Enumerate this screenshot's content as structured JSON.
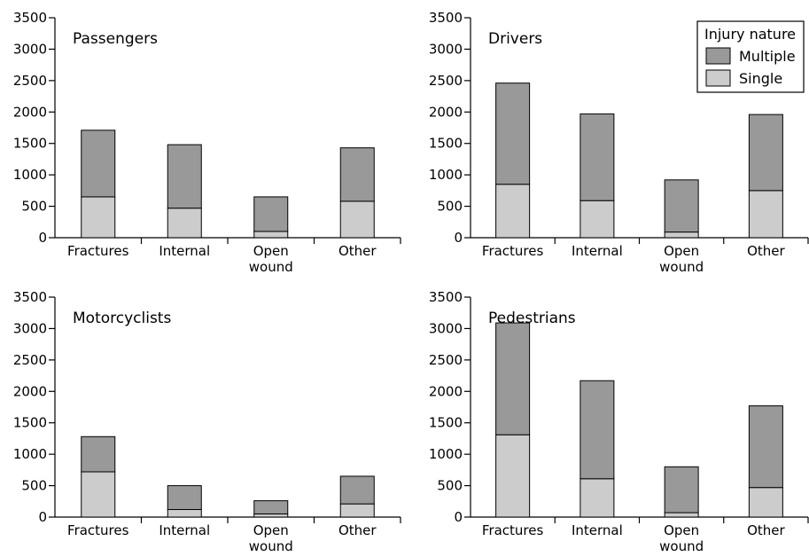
{
  "chart_data": {
    "type": "bar",
    "stacked": true,
    "categories": [
      [
        "Fractures"
      ],
      [
        "Internal"
      ],
      [
        "Open",
        "wound"
      ],
      [
        "Other"
      ]
    ],
    "ylim": [
      0,
      3500
    ],
    "yticks": [
      0,
      500,
      1000,
      1500,
      2000,
      2500,
      3000,
      3500
    ],
    "colors": {
      "Single": "#cccccc",
      "Multiple": "#999999"
    },
    "legend": {
      "title": "Injury nature",
      "entries": [
        "Multiple",
        "Single"
      ],
      "placement": "top-right"
    },
    "panels": [
      {
        "title": "Passengers",
        "series": [
          {
            "name": "Single",
            "values": [
              650,
              470,
              100,
              580
            ]
          },
          {
            "name": "Multiple",
            "values": [
              1060,
              1010,
              550,
              850
            ]
          }
        ]
      },
      {
        "title": "Drivers",
        "series": [
          {
            "name": "Single",
            "values": [
              850,
              590,
              90,
              750
            ]
          },
          {
            "name": "Multiple",
            "values": [
              1610,
              1380,
              830,
              1210
            ]
          }
        ]
      },
      {
        "title": "Motorcyclists",
        "series": [
          {
            "name": "Single",
            "values": [
              720,
              120,
              50,
              210
            ]
          },
          {
            "name": "Multiple",
            "values": [
              560,
              380,
              210,
              440
            ]
          }
        ]
      },
      {
        "title": "Pedestrians",
        "series": [
          {
            "name": "Single",
            "values": [
              1310,
              610,
              70,
              470
            ]
          },
          {
            "name": "Multiple",
            "values": [
              1780,
              1560,
              730,
              1300
            ]
          }
        ]
      }
    ]
  }
}
